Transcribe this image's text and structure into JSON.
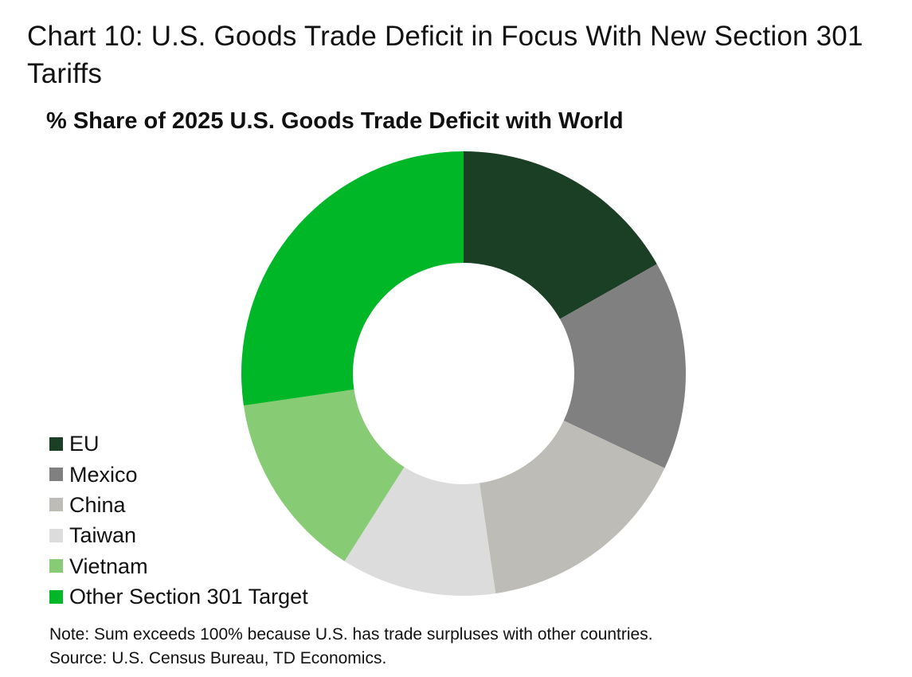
{
  "chart_data": {
    "type": "pie",
    "donut": true,
    "title": "Chart 10: U.S. Goods Trade Deficit in Focus With New Section 301 Tariffs",
    "subtitle": "% Share of 2025 U.S. Goods Trade Deficit with World",
    "legend_position": "bottom-left",
    "categories": [
      "EU",
      "Mexico",
      "China",
      "Taiwan",
      "Vietnam",
      "Other Section 301 Target"
    ],
    "values": [
      16.8,
      15.2,
      15.7,
      11.3,
      13.7,
      27.3
    ],
    "colors": [
      "#1a3f24",
      "#808080",
      "#bdbcb6",
      "#dcdcdc",
      "#88cb75",
      "#00b728"
    ]
  },
  "notes": {
    "note": "Note: Sum exceeds 100% because U.S. has trade surpluses with other countries.",
    "source": "Source: U.S. Census Bureau, TD Economics."
  }
}
